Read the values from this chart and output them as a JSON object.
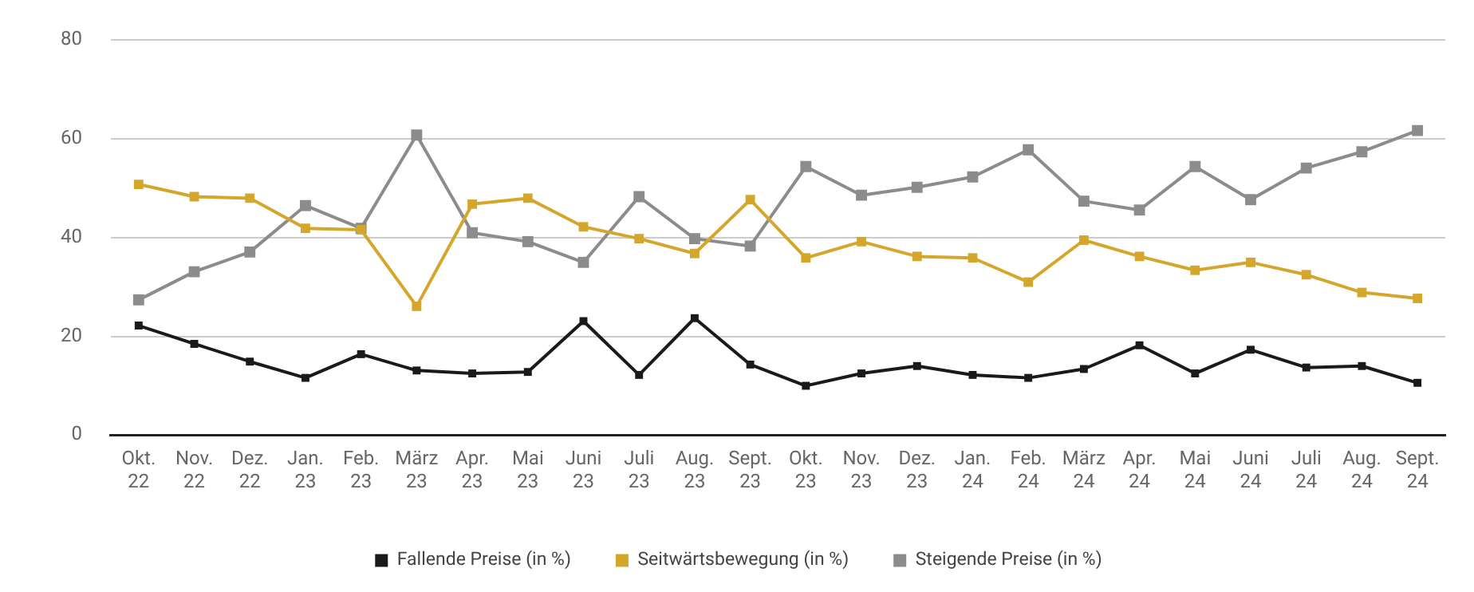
{
  "chart_data": {
    "type": "line",
    "categories": [
      "Okt. 22",
      "Nov. 22",
      "Dez. 22",
      "Jan. 23",
      "Feb. 23",
      "März 23",
      "Apr. 23",
      "Mai 23",
      "Juni 23",
      "Juli 23",
      "Aug. 23",
      "Sept. 23",
      "Okt. 23",
      "Nov. 23",
      "Dez. 23",
      "Jan. 24",
      "Feb. 24",
      "März 24",
      "Apr. 24",
      "Mai 24",
      "Juni 24",
      "Juli 24",
      "Aug. 24",
      "Sept. 24"
    ],
    "series": [
      {
        "name": "Fallende Preise (in %)",
        "color": "#1a1a1a",
        "values": [
          22.2,
          18.5,
          14.9,
          11.6,
          16.4,
          13.1,
          12.5,
          12.8,
          23.1,
          12.2,
          23.7,
          14.3,
          10.0,
          12.5,
          14.0,
          12.2,
          11.6,
          13.4,
          18.2,
          12.5,
          17.3,
          13.7,
          14.0,
          10.6
        ]
      },
      {
        "name": "Seitwärtsbewegung (in %)",
        "color": "#d4a72c",
        "values": [
          50.8,
          48.3,
          48.0,
          41.9,
          41.6,
          26.1,
          46.8,
          48.0,
          42.2,
          39.8,
          36.8,
          47.7,
          35.9,
          39.2,
          36.2,
          35.9,
          31.0,
          39.5,
          36.2,
          33.4,
          35.0,
          32.5,
          28.9,
          27.7
        ]
      },
      {
        "name": "Steigende Preise (in %)",
        "color": "#8c8c8c",
        "values": [
          27.4,
          33.1,
          37.1,
          46.5,
          41.9,
          60.8,
          41.0,
          39.2,
          35.0,
          48.3,
          39.8,
          38.3,
          54.4,
          48.6,
          50.2,
          52.3,
          57.8,
          47.4,
          45.6,
          54.4,
          47.7,
          54.1,
          57.4,
          61.7
        ]
      }
    ],
    "ylim": [
      0,
      80
    ],
    "yticks": [
      0,
      20,
      40,
      60,
      80
    ],
    "grid": "y",
    "legend": "bottom",
    "marker": "square",
    "line_style": "solid"
  }
}
